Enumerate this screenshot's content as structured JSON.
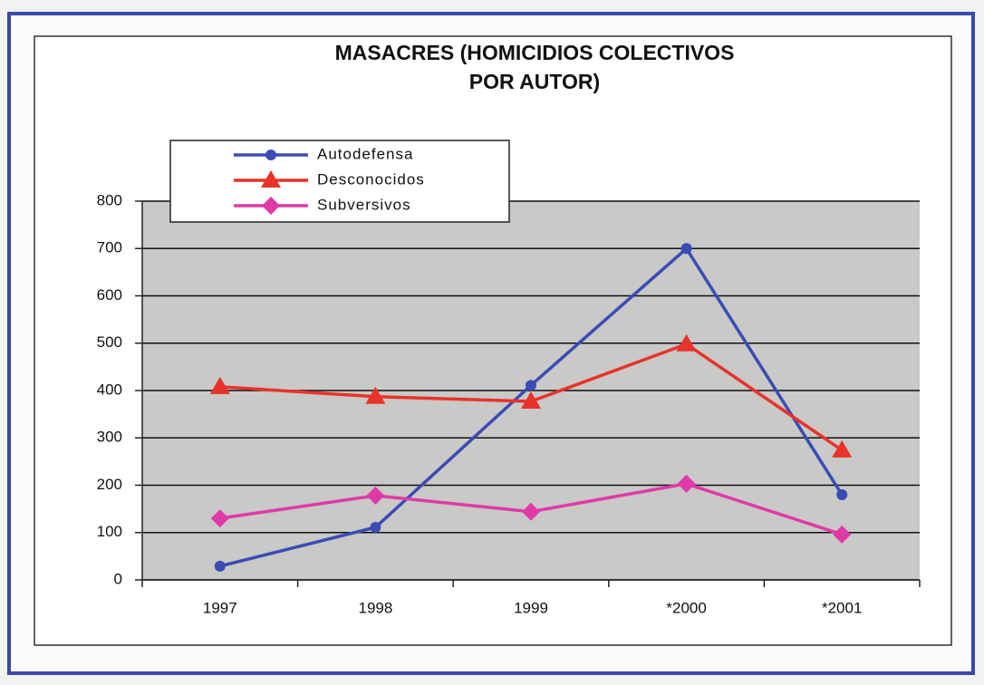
{
  "chart_data": {
    "type": "line",
    "title": [
      "MASACRES (HOMICIDIOS COLECTIVOS",
      "POR AUTOR)"
    ],
    "categories": [
      "1997",
      "1998",
      "1999",
      "*2000",
      "*2001"
    ],
    "series": [
      {
        "name": "Autodefensa",
        "color": "#3b4cb4",
        "marker": "circle",
        "values": [
          29,
          111,
          411,
          700,
          180
        ]
      },
      {
        "name": "Desconocidos",
        "color": "#e8332a",
        "marker": "triangle",
        "values": [
          408,
          387,
          377,
          498,
          274
        ]
      },
      {
        "name": "Subversivos",
        "color": "#e03aa8",
        "marker": "diamond",
        "values": [
          130,
          178,
          144,
          203,
          96
        ]
      }
    ],
    "ylim": [
      0,
      800
    ],
    "yticks": [
      0,
      100,
      200,
      300,
      400,
      500,
      600,
      700,
      800
    ],
    "grid": true
  }
}
